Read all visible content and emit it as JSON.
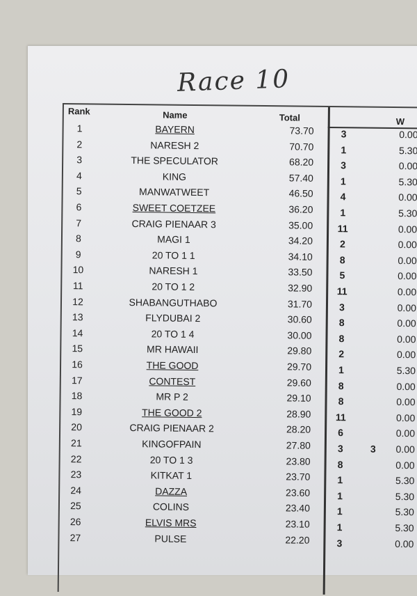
{
  "title": "Race 10",
  "headers": {
    "rank": "Rank",
    "name": "Name",
    "total": "Total",
    "w": "W"
  },
  "rows": [
    {
      "rank": "1",
      "name": "BAYERN",
      "underline": true,
      "total": "73.70",
      "pos": "3",
      "extra": "",
      "w": "0.00"
    },
    {
      "rank": "2",
      "name": "NARESH 2",
      "underline": false,
      "total": "70.70",
      "pos": "1",
      "extra": "",
      "w": "5.30"
    },
    {
      "rank": "3",
      "name": "THE SPECULATOR",
      "underline": false,
      "total": "68.20",
      "pos": "3",
      "extra": "",
      "w": "0.00"
    },
    {
      "rank": "4",
      "name": "KING",
      "underline": false,
      "total": "57.40",
      "pos": "1",
      "extra": "",
      "w": "5.30"
    },
    {
      "rank": "5",
      "name": "MANWATWEET",
      "underline": false,
      "total": "46.50",
      "pos": "4",
      "extra": "",
      "w": "0.00"
    },
    {
      "rank": "6",
      "name": "SWEET COETZEE",
      "underline": true,
      "total": "36.20",
      "pos": "1",
      "extra": "",
      "w": "5.30"
    },
    {
      "rank": "7",
      "name": "CRAIG PIENAAR 3",
      "underline": false,
      "total": "35.00",
      "pos": "11",
      "extra": "",
      "w": "0.00"
    },
    {
      "rank": "8",
      "name": "MAGI 1",
      "underline": false,
      "total": "34.20",
      "pos": "2",
      "extra": "",
      "w": "0.00"
    },
    {
      "rank": "9",
      "name": "20 TO 1 1",
      "underline": false,
      "total": "34.10",
      "pos": "8",
      "extra": "",
      "w": "0.00"
    },
    {
      "rank": "10",
      "name": "NARESH 1",
      "underline": false,
      "total": "33.50",
      "pos": "5",
      "extra": "",
      "w": "0.00"
    },
    {
      "rank": "11",
      "name": "20 TO 1 2",
      "underline": false,
      "total": "32.90",
      "pos": "11",
      "extra": "",
      "w": "0.00"
    },
    {
      "rank": "12",
      "name": "SHABANGUTHABO",
      "underline": false,
      "total": "31.70",
      "pos": "3",
      "extra": "",
      "w": "0.00"
    },
    {
      "rank": "13",
      "name": "FLYDUBAI 2",
      "underline": false,
      "total": "30.60",
      "pos": "8",
      "extra": "",
      "w": "0.00"
    },
    {
      "rank": "14",
      "name": "20 TO 1 4",
      "underline": false,
      "total": "30.00",
      "pos": "8",
      "extra": "",
      "w": "0.00"
    },
    {
      "rank": "15",
      "name": "MR HAWAII",
      "underline": false,
      "total": "29.80",
      "pos": "2",
      "extra": "",
      "w": "0.00"
    },
    {
      "rank": "16",
      "name": "THE GOOD",
      "underline": true,
      "total": "29.70",
      "pos": "1",
      "extra": "",
      "w": "5.30"
    },
    {
      "rank": "17",
      "name": "CONTEST",
      "underline": true,
      "total": "29.60",
      "pos": "8",
      "extra": "",
      "w": "0.00"
    },
    {
      "rank": "18",
      "name": "MR P 2",
      "underline": false,
      "total": "29.10",
      "pos": "8",
      "extra": "",
      "w": "0.00"
    },
    {
      "rank": "19",
      "name": "THE GOOD 2",
      "underline": true,
      "total": "28.90",
      "pos": "11",
      "extra": "",
      "w": "0.00"
    },
    {
      "rank": "20",
      "name": "CRAIG PIENAAR 2",
      "underline": false,
      "total": "28.20",
      "pos": "6",
      "extra": "",
      "w": "0.00"
    },
    {
      "rank": "21",
      "name": "KINGOFPAIN",
      "underline": false,
      "total": "27.80",
      "pos": "3",
      "extra": "3",
      "w": "0.00"
    },
    {
      "rank": "22",
      "name": "20 TO 1 3",
      "underline": false,
      "total": "23.80",
      "pos": "8",
      "extra": "",
      "w": "0.00"
    },
    {
      "rank": "23",
      "name": "KITKAT 1",
      "underline": false,
      "total": "23.70",
      "pos": "1",
      "extra": "",
      "w": "5.30"
    },
    {
      "rank": "24",
      "name": "DAZZA",
      "underline": true,
      "total": "23.60",
      "pos": "1",
      "extra": "",
      "w": "5.30"
    },
    {
      "rank": "25",
      "name": "COLINS",
      "underline": false,
      "total": "23.40",
      "pos": "1",
      "extra": "",
      "w": "5.30"
    },
    {
      "rank": "26",
      "name": "ELVIS MRS",
      "underline": true,
      "total": "23.10",
      "pos": "1",
      "extra": "",
      "w": "5.30"
    },
    {
      "rank": "27",
      "name": "PULSE",
      "underline": false,
      "total": "22.20",
      "pos": "3",
      "extra": "",
      "w": "0.00"
    }
  ]
}
